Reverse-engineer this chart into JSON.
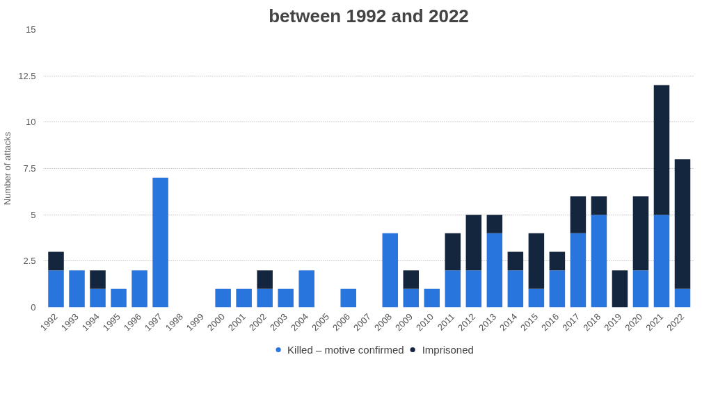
{
  "chart_data": {
    "type": "bar",
    "title": "between 1992 and 2022",
    "ylabel": "Number of attacks",
    "categories": [
      "1992",
      "1993",
      "1994",
      "1995",
      "1996",
      "1997",
      "1998",
      "1999",
      "2000",
      "2001",
      "2002",
      "2003",
      "2004",
      "2005",
      "2006",
      "2007",
      "2008",
      "2009",
      "2010",
      "2011",
      "2012",
      "2013",
      "2014",
      "2015",
      "2016",
      "2017",
      "2018",
      "2019",
      "2020",
      "2021",
      "2022"
    ],
    "series": [
      {
        "name": "Killed – motive confirmed",
        "color": "#2876dd",
        "values": [
          2,
          2,
          1,
          1,
          2,
          7,
          0,
          0,
          1,
          1,
          1,
          1,
          2,
          0,
          1,
          0,
          4,
          1,
          1,
          2,
          2,
          4,
          2,
          1,
          2,
          4,
          5,
          0,
          2,
          5,
          1
        ]
      },
      {
        "name": "Imprisoned",
        "color": "#14263d",
        "values": [
          1,
          0,
          1,
          0,
          0,
          0,
          0,
          0,
          0,
          0,
          1,
          0,
          0,
          0,
          0,
          0,
          0,
          1,
          0,
          2,
          3,
          1,
          1,
          3,
          1,
          2,
          1,
          2,
          4,
          7,
          7
        ]
      }
    ],
    "stacked": true,
    "ylim": [
      0,
      15
    ],
    "yticks": [
      0,
      2.5,
      5,
      7.5,
      10,
      12.5,
      15
    ],
    "grid": "y",
    "legend": "bottom"
  }
}
